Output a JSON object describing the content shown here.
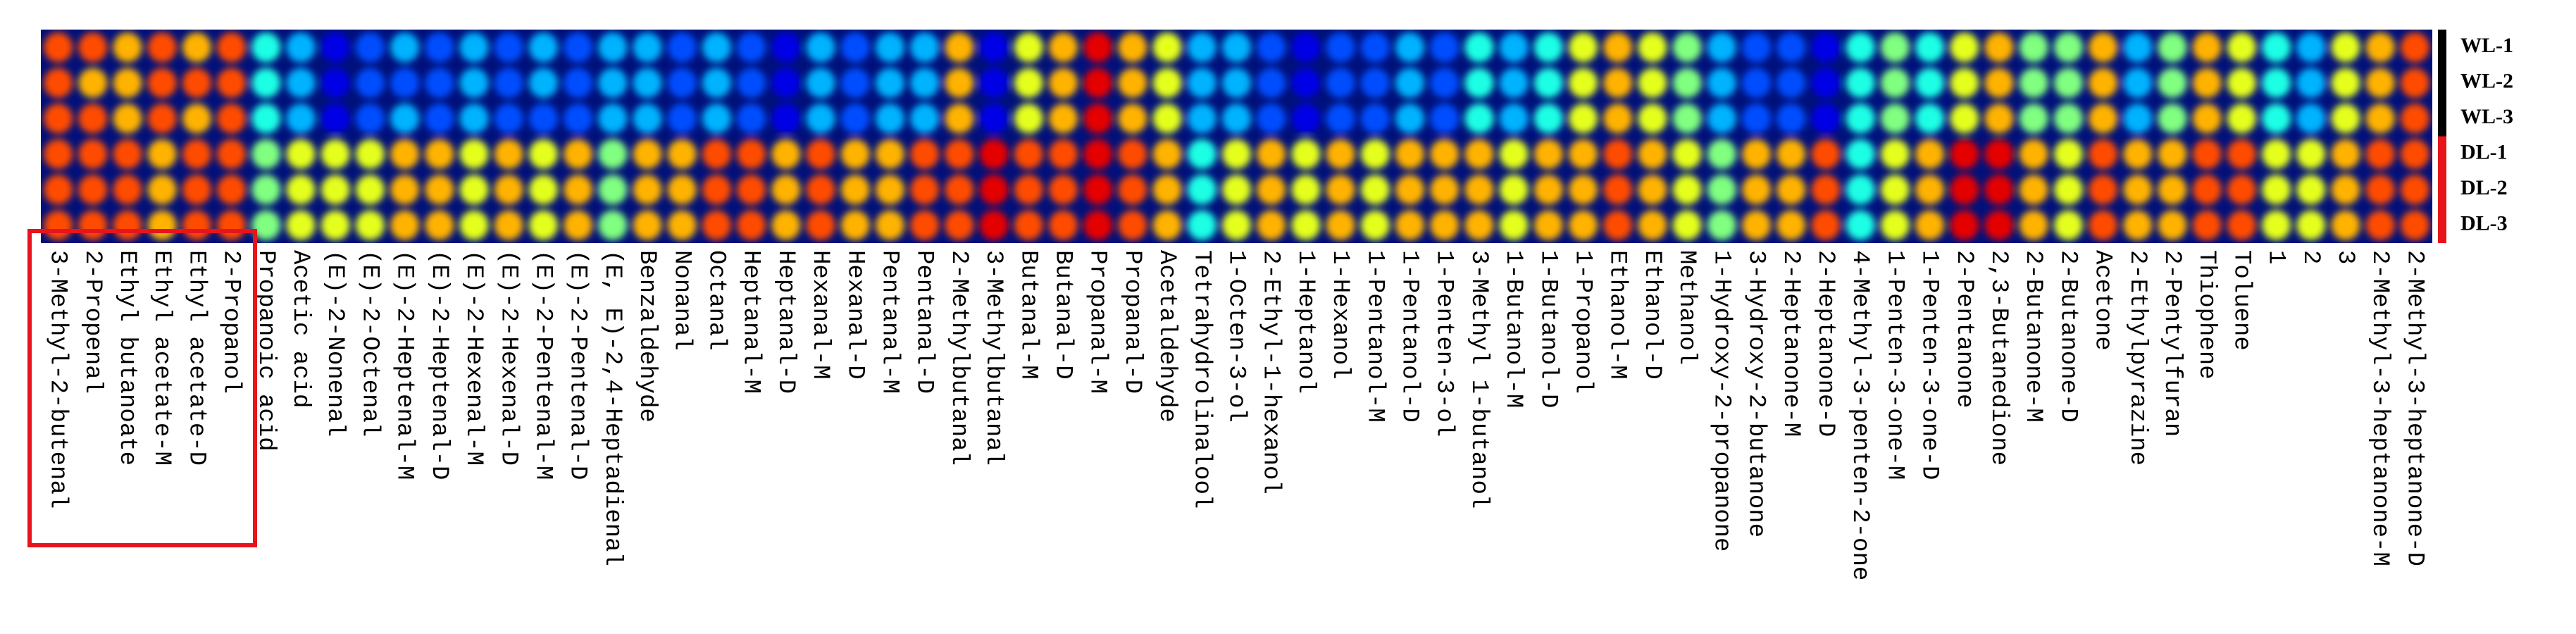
{
  "chart_data": {
    "type": "heatmap",
    "colormap": "jet",
    "rows": [
      "WL-1",
      "WL-2",
      "WL-3",
      "DL-1",
      "DL-2",
      "DL-3"
    ],
    "columns": [
      "3-Methyl-2-butenal",
      "2-Propenal",
      "Ethyl butanoate",
      "Ethyl acetate-M",
      "Ethyl acetate-D",
      "2-Propanol",
      "Propanoic acid",
      "Acetic acid",
      "(E)-2-Nonenal",
      "(E)-2-Octenal",
      "(E)-2-Heptenal-M",
      "(E)-2-Heptenal-D",
      "(E)-2-Hexenal-M",
      "(E)-2-Hexenal-D",
      "(E)-2-Pentenal-M",
      "(E)-2-Pentenal-D",
      "(E, E)-2,4-Heptadienal",
      "Benzaldehyde",
      "Nonanal",
      "Octanal",
      "Heptanal-M",
      "Heptanal-D",
      "Hexanal-M",
      "Hexanal-D",
      "Pentanal-M",
      "Pentanal-D",
      "2-Methylbutanal",
      "3-Methylbutanal",
      "Butanal-M",
      "Butanal-D",
      "Propanal-M",
      "Propanal-D",
      "Acetaldehyde",
      "Tetrahydrolinalool",
      "1-Octen-3-ol",
      "2-Ethyl-1-hexanol",
      "1-Heptanol",
      "1-Hexanol",
      "1-Pentanol-M",
      "1-Pentanol-D",
      "1-Penten-3-ol",
      "3-Methyl 1-butanol",
      "1-Butanol-M",
      "1-Butanol-D",
      "1-Propanol",
      "Ethanol-M",
      "Ethanol-D",
      "Methanol",
      "1-Hydroxy-2-propanone",
      "3-Hydroxy-2-butanone",
      "2-Heptanone-M",
      "2-Heptanone-D",
      "4-Methyl-3-penten-2-one",
      "1-Penten-3-one-M",
      "1-Penten-3-one-D",
      "2-Pentanone",
      "2,3-Butanedione",
      "2-Butanone-M",
      "2-Butanone-D",
      "Acetone",
      "2-Ethylpyrazine",
      "2-Pentylfuran",
      "Thiophene",
      "Toluene",
      "1",
      "2",
      "3",
      "2-Methyl-3-heptanone-M",
      "2-Methyl-3-heptanone-D"
    ],
    "values": [
      [
        0.8,
        0.8,
        0.7,
        0.8,
        0.7,
        0.8,
        0.4,
        0.3,
        0.1,
        0.2,
        0.3,
        0.2,
        0.3,
        0.2,
        0.3,
        0.2,
        0.3,
        0.3,
        0.2,
        0.3,
        0.2,
        0.1,
        0.3,
        0.2,
        0.3,
        0.3,
        0.7,
        0.1,
        0.6,
        0.7,
        0.9,
        0.7,
        0.6,
        0.3,
        0.3,
        0.2,
        0.1,
        0.2,
        0.2,
        0.3,
        0.2,
        0.4,
        0.3,
        0.4,
        0.6,
        0.7,
        0.6,
        0.5,
        0.3,
        0.2,
        0.2,
        0.1,
        0.4,
        0.5,
        0.4,
        0.6,
        0.7,
        0.5,
        0.5,
        0.7,
        0.3,
        0.5,
        0.7,
        0.6,
        0.4,
        0.3,
        0.6,
        0.7,
        0.8
      ],
      [
        0.8,
        0.7,
        0.7,
        0.8,
        0.8,
        0.8,
        0.4,
        0.3,
        0.1,
        0.2,
        0.2,
        0.2,
        0.3,
        0.2,
        0.3,
        0.2,
        0.3,
        0.3,
        0.2,
        0.3,
        0.2,
        0.1,
        0.3,
        0.2,
        0.3,
        0.3,
        0.7,
        0.1,
        0.6,
        0.7,
        0.9,
        0.7,
        0.6,
        0.3,
        0.3,
        0.2,
        0.1,
        0.2,
        0.2,
        0.3,
        0.2,
        0.4,
        0.3,
        0.4,
        0.6,
        0.7,
        0.6,
        0.5,
        0.3,
        0.2,
        0.2,
        0.1,
        0.4,
        0.5,
        0.4,
        0.6,
        0.7,
        0.5,
        0.5,
        0.7,
        0.3,
        0.5,
        0.7,
        0.6,
        0.4,
        0.3,
        0.6,
        0.7,
        0.8
      ],
      [
        0.8,
        0.8,
        0.7,
        0.8,
        0.7,
        0.8,
        0.4,
        0.3,
        0.1,
        0.2,
        0.3,
        0.2,
        0.3,
        0.2,
        0.2,
        0.2,
        0.3,
        0.3,
        0.2,
        0.3,
        0.2,
        0.1,
        0.3,
        0.2,
        0.3,
        0.3,
        0.7,
        0.1,
        0.6,
        0.7,
        0.9,
        0.7,
        0.6,
        0.3,
        0.3,
        0.2,
        0.1,
        0.2,
        0.2,
        0.3,
        0.2,
        0.4,
        0.3,
        0.4,
        0.6,
        0.7,
        0.6,
        0.5,
        0.3,
        0.2,
        0.2,
        0.1,
        0.4,
        0.5,
        0.4,
        0.6,
        0.7,
        0.5,
        0.5,
        0.7,
        0.3,
        0.5,
        0.7,
        0.6,
        0.4,
        0.3,
        0.6,
        0.7,
        0.8
      ],
      [
        0.8,
        0.8,
        0.8,
        0.7,
        0.8,
        0.8,
        0.5,
        0.6,
        0.6,
        0.6,
        0.7,
        0.7,
        0.6,
        0.7,
        0.6,
        0.7,
        0.5,
        0.7,
        0.7,
        0.8,
        0.8,
        0.7,
        0.8,
        0.7,
        0.7,
        0.8,
        0.8,
        0.9,
        0.8,
        0.8,
        0.9,
        0.8,
        0.7,
        0.4,
        0.6,
        0.7,
        0.6,
        0.7,
        0.6,
        0.7,
        0.7,
        0.7,
        0.6,
        0.7,
        0.7,
        0.8,
        0.7,
        0.6,
        0.5,
        0.7,
        0.7,
        0.8,
        0.4,
        0.6,
        0.7,
        0.9,
        0.9,
        0.7,
        0.6,
        0.8,
        0.7,
        0.7,
        0.8,
        0.8,
        0.6,
        0.6,
        0.7,
        0.8,
        0.8
      ],
      [
        0.8,
        0.8,
        0.8,
        0.7,
        0.8,
        0.8,
        0.5,
        0.6,
        0.6,
        0.6,
        0.7,
        0.7,
        0.6,
        0.7,
        0.6,
        0.7,
        0.5,
        0.7,
        0.7,
        0.8,
        0.8,
        0.7,
        0.8,
        0.7,
        0.7,
        0.8,
        0.8,
        0.9,
        0.8,
        0.8,
        0.9,
        0.8,
        0.7,
        0.4,
        0.6,
        0.7,
        0.6,
        0.7,
        0.6,
        0.7,
        0.7,
        0.7,
        0.6,
        0.7,
        0.7,
        0.8,
        0.7,
        0.6,
        0.5,
        0.7,
        0.7,
        0.8,
        0.4,
        0.6,
        0.7,
        0.9,
        0.9,
        0.7,
        0.6,
        0.8,
        0.7,
        0.7,
        0.8,
        0.8,
        0.6,
        0.6,
        0.7,
        0.8,
        0.8
      ],
      [
        0.8,
        0.8,
        0.8,
        0.7,
        0.8,
        0.8,
        0.5,
        0.6,
        0.6,
        0.6,
        0.7,
        0.7,
        0.6,
        0.7,
        0.6,
        0.7,
        0.5,
        0.7,
        0.7,
        0.8,
        0.8,
        0.7,
        0.8,
        0.7,
        0.7,
        0.8,
        0.8,
        0.9,
        0.8,
        0.8,
        0.9,
        0.8,
        0.7,
        0.4,
        0.6,
        0.7,
        0.6,
        0.7,
        0.6,
        0.7,
        0.7,
        0.7,
        0.6,
        0.7,
        0.7,
        0.8,
        0.7,
        0.6,
        0.5,
        0.7,
        0.7,
        0.8,
        0.4,
        0.6,
        0.7,
        0.9,
        0.9,
        0.7,
        0.6,
        0.8,
        0.7,
        0.7,
        0.8,
        0.8,
        0.6,
        0.6,
        0.7,
        0.8,
        0.8
      ]
    ]
  }
}
